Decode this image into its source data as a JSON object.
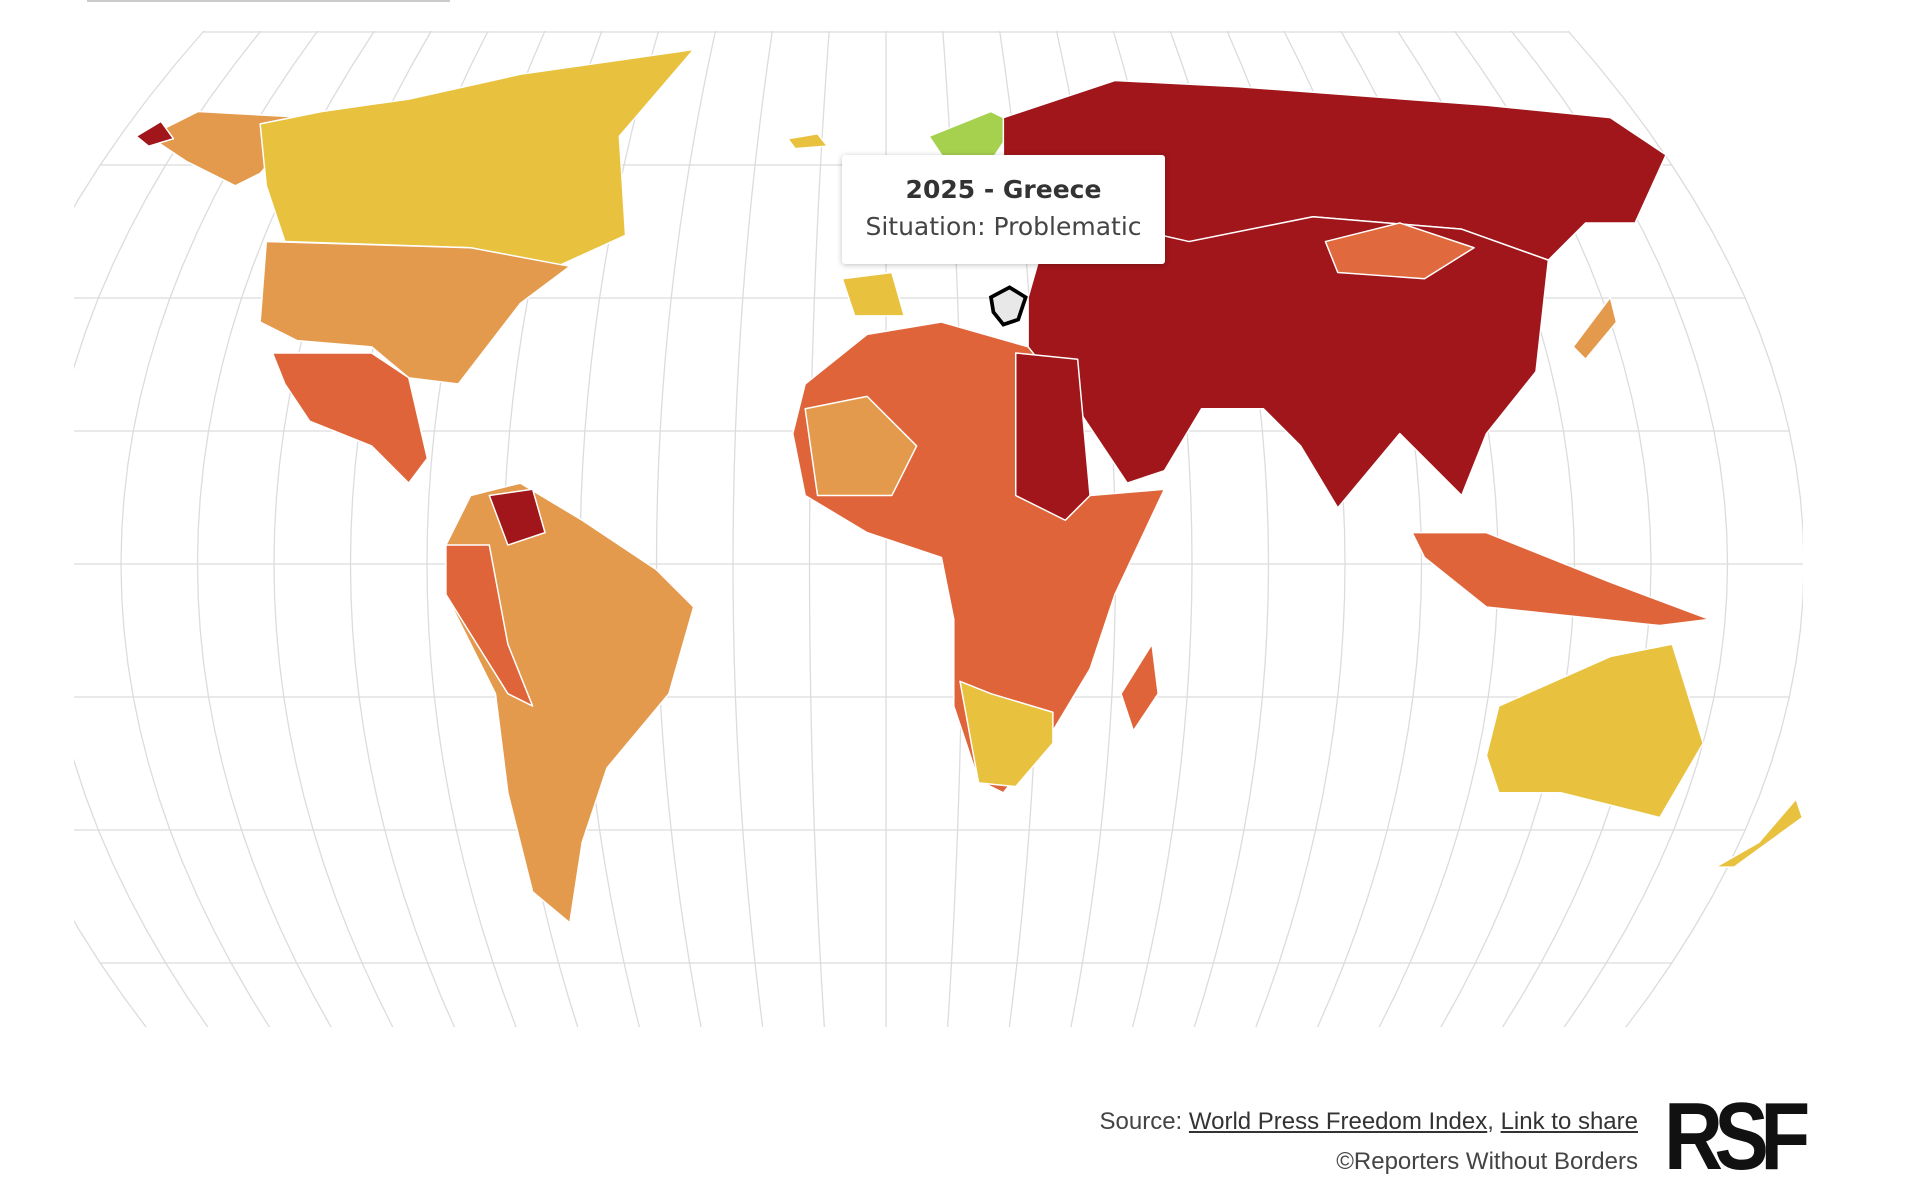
{
  "tooltip": {
    "title": "2025 - Greece",
    "text": "Situation: Problematic"
  },
  "footer": {
    "source_prefix": "Source:",
    "source_link": "World Press Freedom Index",
    "separator": ",",
    "share_link": "Link to share",
    "copyright": "©Reporters Without Borders",
    "logo": "RSF"
  }
}
